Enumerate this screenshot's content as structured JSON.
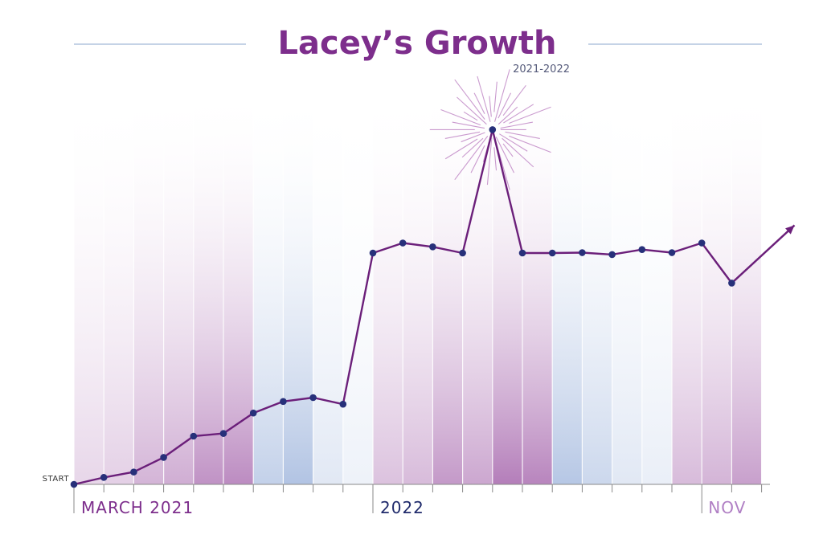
{
  "colors": {
    "line": "#6b1f7a",
    "point": "#27307a",
    "title": "#7d2e8c",
    "subtitle": "#555a7a",
    "start_label": "#333333",
    "label_left": "#7d2e8c",
    "label_mid": "#1f2a6b",
    "label_right": "#b07fc4",
    "rule": "#c5d3e6",
    "axis": "#888888",
    "band_purple": "#b077b6",
    "band_blue": "#a9bde0",
    "burst": "#a04aa8"
  },
  "chart_data": {
    "type": "line",
    "title": "Lacey’s Growth",
    "subtitle": "2021-2022",
    "start_label": "START",
    "x_labels": [
      {
        "index": 0,
        "text": "MARCH 2021"
      },
      {
        "index": 10,
        "text": "2022"
      },
      {
        "index": 21,
        "text": "NOV"
      }
    ],
    "ylim": [
      0,
      100
    ],
    "grid": "vertical",
    "highlight_index": 14,
    "trend_arrow": true,
    "series": [
      {
        "values": [
          0,
          1.8,
          3.2,
          7,
          12.5,
          13.2,
          18.5,
          21.5,
          22.5,
          20.8,
          60,
          62.6,
          61.6,
          60,
          92,
          60,
          60,
          60.1,
          59.6,
          60.9,
          60.1,
          62.6,
          52.2
        ]
      }
    ]
  }
}
